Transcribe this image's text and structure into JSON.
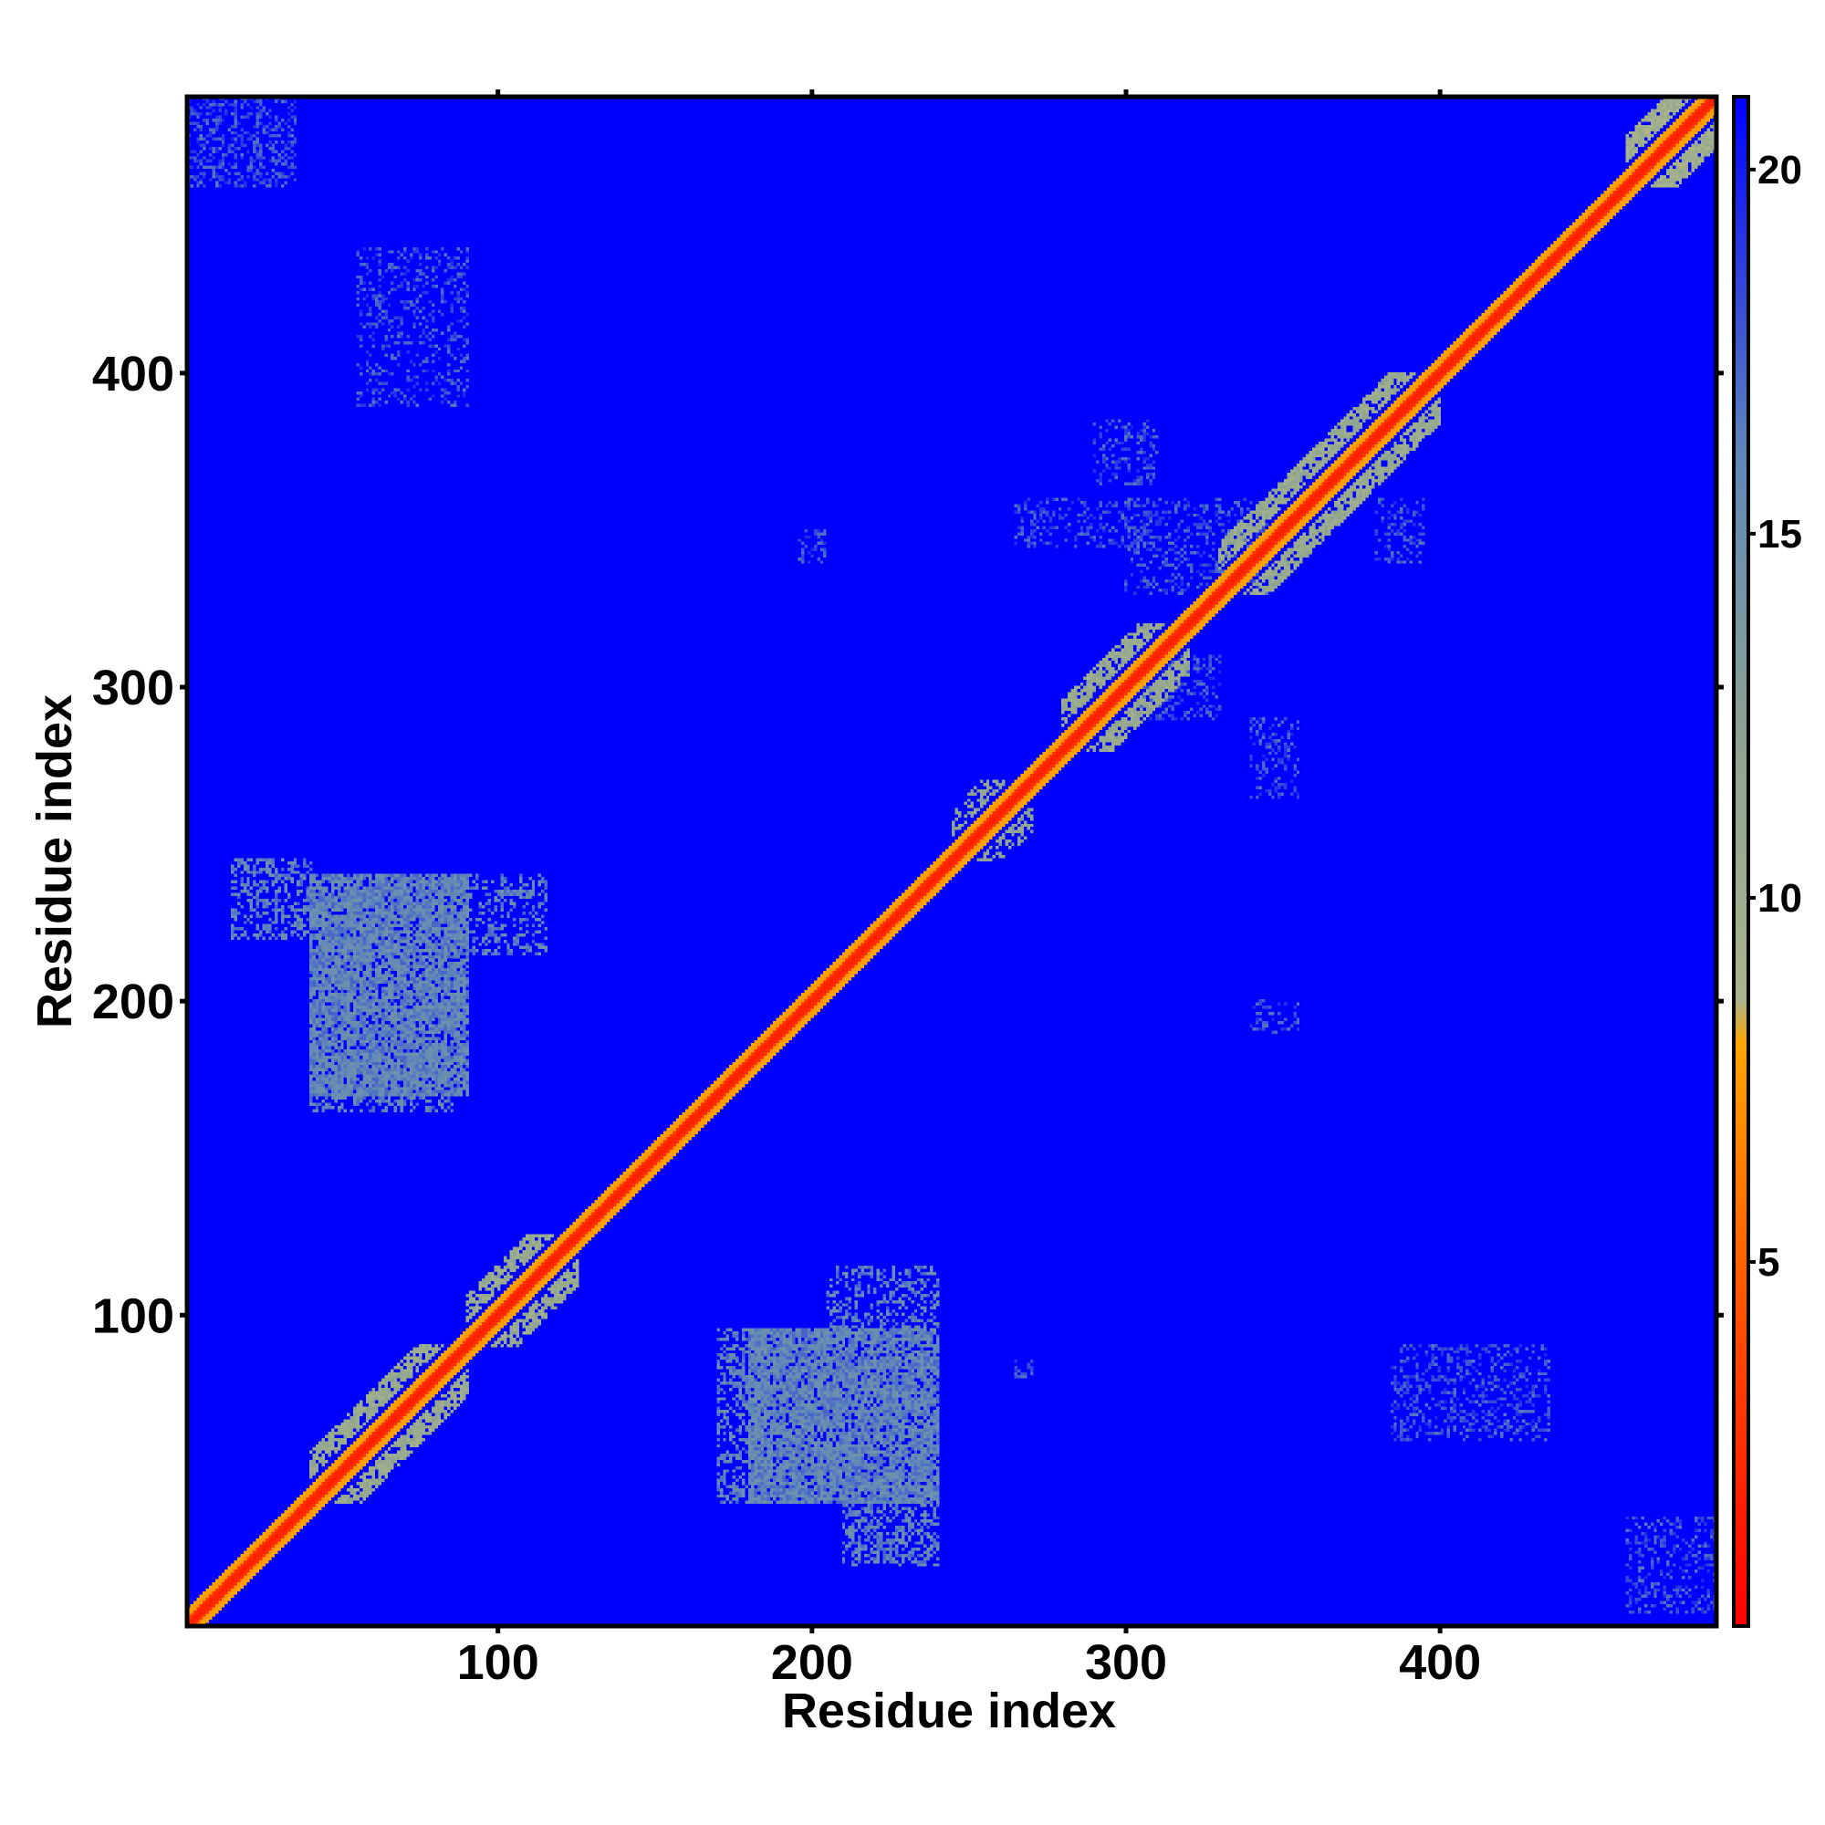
{
  "chart_data": {
    "type": "heatmap",
    "title": "",
    "xlabel": "Residue index",
    "ylabel": "Residue index",
    "xlim": [
      1,
      488
    ],
    "ylim": [
      1,
      488
    ],
    "xticks": [
      100,
      200,
      300,
      400
    ],
    "yticks": [
      100,
      200,
      300,
      400
    ],
    "grid": false,
    "legend": "colorbar-right",
    "colorbar": {
      "range": [
        0,
        21
      ],
      "ticks": [
        5,
        10,
        15,
        20
      ],
      "stops": [
        {
          "value": 0,
          "color": "#ff0000"
        },
        {
          "value": 4,
          "color": "#ff4a00"
        },
        {
          "value": 8,
          "color": "#ffa500"
        },
        {
          "value": 8.6,
          "color": "#aab48c"
        },
        {
          "value": 12,
          "color": "#8fa490"
        },
        {
          "value": 16,
          "color": "#5f88b8"
        },
        {
          "value": 21,
          "color": "#0000ff"
        }
      ]
    },
    "background_value": 21,
    "diagonal": {
      "value": 1.5,
      "halfwidth": 2.5,
      "halo_value": 8,
      "halo_halfwidth": 5
    },
    "patches": [
      {
        "x": [
          40,
          90
        ],
        "y": [
          40,
          90
        ],
        "value": 11,
        "density": 0.55,
        "shape": "diagonal-band"
      },
      {
        "x": [
          90,
          125
        ],
        "y": [
          90,
          125
        ],
        "value": 11,
        "density": 0.5,
        "shape": "diagonal-band"
      },
      {
        "x": [
          250,
          270
        ],
        "y": [
          245,
          262
        ],
        "value": 12,
        "density": 0.5,
        "shape": "diagonal-band"
      },
      {
        "x": [
          280,
          320
        ],
        "y": [
          280,
          320
        ],
        "value": 11,
        "density": 0.55,
        "shape": "diagonal-band"
      },
      {
        "x": [
          330,
          400
        ],
        "y": [
          330,
          400
        ],
        "value": 11,
        "density": 0.55,
        "shape": "diagonal-band"
      },
      {
        "x": [
          460,
          488
        ],
        "y": [
          460,
          488
        ],
        "value": 10,
        "density": 0.7,
        "shape": "diagonal-band"
      },
      {
        "x": [
          40,
          90
        ],
        "y": [
          170,
          240
        ],
        "value": 16,
        "density": 0.85,
        "shape": "block"
      },
      {
        "x": [
          15,
          40
        ],
        "y": [
          220,
          245
        ],
        "value": 16,
        "density": 0.45,
        "shape": "block"
      },
      {
        "x": [
          90,
          115
        ],
        "y": [
          215,
          240
        ],
        "value": 16,
        "density": 0.35,
        "shape": "block"
      },
      {
        "x": [
          40,
          85
        ],
        "y": [
          165,
          180
        ],
        "value": 16,
        "density": 0.45,
        "shape": "block"
      },
      {
        "x": [
          180,
          240
        ],
        "y": [
          40,
          95
        ],
        "value": 16,
        "density": 0.85,
        "shape": "block"
      },
      {
        "x": [
          210,
          240
        ],
        "y": [
          20,
          40
        ],
        "value": 16,
        "density": 0.5,
        "shape": "block"
      },
      {
        "x": [
          170,
          185
        ],
        "y": [
          40,
          95
        ],
        "value": 16,
        "density": 0.45,
        "shape": "block"
      },
      {
        "x": [
          205,
          240
        ],
        "y": [
          95,
          115
        ],
        "value": 16,
        "density": 0.35,
        "shape": "block"
      },
      {
        "x": [
          55,
          90
        ],
        "y": [
          390,
          440
        ],
        "value": 18,
        "density": 0.25,
        "shape": "block"
      },
      {
        "x": [
          1,
          35
        ],
        "y": [
          460,
          488
        ],
        "value": 18,
        "density": 0.35,
        "shape": "block"
      },
      {
        "x": [
          265,
          310
        ],
        "y": [
          345,
          360
        ],
        "value": 18,
        "density": 0.3,
        "shape": "block"
      },
      {
        "x": [
          290,
          310
        ],
        "y": [
          365,
          385
        ],
        "value": 18,
        "density": 0.3,
        "shape": "block"
      },
      {
        "x": [
          305,
          330
        ],
        "y": [
          290,
          310
        ],
        "value": 18,
        "density": 0.3,
        "shape": "block"
      },
      {
        "x": [
          340,
          355
        ],
        "y": [
          265,
          290
        ],
        "value": 18,
        "density": 0.3,
        "shape": "block"
      },
      {
        "x": [
          385,
          435
        ],
        "y": [
          60,
          90
        ],
        "value": 18,
        "density": 0.3,
        "shape": "block"
      },
      {
        "x": [
          460,
          488
        ],
        "y": [
          5,
          35
        ],
        "value": 18,
        "density": 0.3,
        "shape": "block"
      },
      {
        "x": [
          300,
          345
        ],
        "y": [
          330,
          360
        ],
        "value": 18,
        "density": 0.25,
        "shape": "block"
      },
      {
        "x": [
          380,
          395
        ],
        "y": [
          340,
          360
        ],
        "value": 18,
        "density": 0.3,
        "shape": "block"
      },
      {
        "x": [
          340,
          355
        ],
        "y": [
          190,
          200
        ],
        "value": 18,
        "density": 0.3,
        "shape": "block"
      },
      {
        "x": [
          195,
          205
        ],
        "y": [
          340,
          350
        ],
        "value": 18,
        "density": 0.3,
        "shape": "block"
      },
      {
        "x": [
          265,
          270
        ],
        "y": [
          80,
          85
        ],
        "value": 18,
        "density": 0.4,
        "shape": "block"
      }
    ]
  }
}
